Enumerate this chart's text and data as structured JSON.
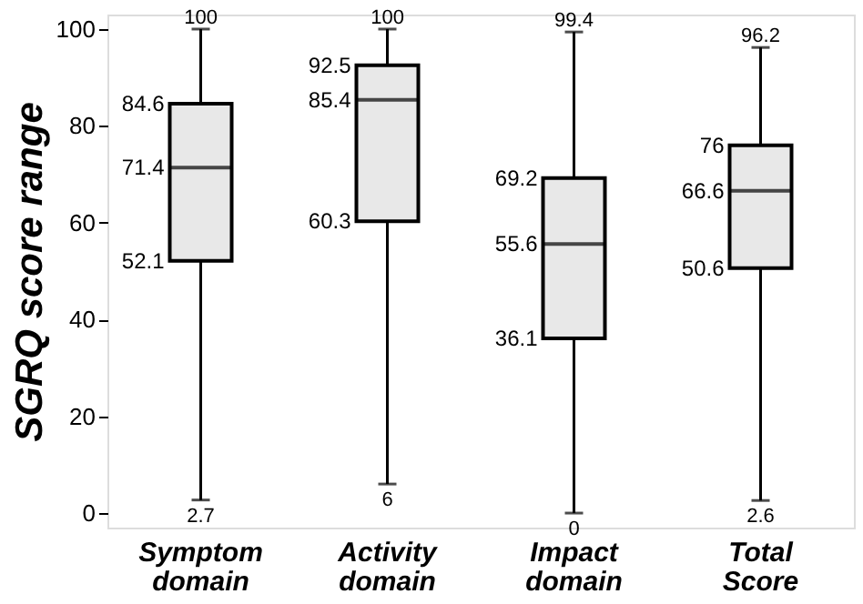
{
  "chart_data": {
    "type": "box",
    "ylabel": "SGRQ score range",
    "categories": [
      "Symptom domain",
      "Activity domain",
      "Impact domain",
      "Total Score"
    ],
    "boxes": [
      {
        "low": 2.7,
        "q1": 52.1,
        "median": 71.4,
        "q3": 84.6,
        "high": 100
      },
      {
        "low": 6,
        "q1": 60.3,
        "median": 85.4,
        "q3": 92.5,
        "high": 100
      },
      {
        "low": 0,
        "q1": 36.1,
        "median": 55.6,
        "q3": 69.2,
        "high": 99.4
      },
      {
        "low": 2.6,
        "q1": 50.6,
        "median": 66.6,
        "q3": 76,
        "high": 96.2
      }
    ],
    "color": "#e8e8e8",
    "ylim": [
      -3,
      103
    ],
    "yticks": [
      0,
      20,
      40,
      60,
      80,
      100
    ],
    "grid": false,
    "annotations": [
      {
        "text": "100",
        "x": "Symptom domain",
        "y": 100
      },
      {
        "text": "84.6",
        "x": "Symptom domain",
        "y": 84.6
      },
      {
        "text": "71.4",
        "x": "Symptom domain",
        "y": 71.4
      },
      {
        "text": "52.1",
        "x": "Symptom domain",
        "y": 52.1
      },
      {
        "text": "2.7",
        "x": "Symptom domain",
        "y": 2.7
      },
      {
        "text": "100",
        "x": "Activity domain",
        "y": 100
      },
      {
        "text": "92.5",
        "x": "Activity domain",
        "y": 92.5
      },
      {
        "text": "85.4",
        "x": "Activity domain",
        "y": 85.4
      },
      {
        "text": "60.3",
        "x": "Activity domain",
        "y": 60.3
      },
      {
        "text": "6",
        "x": "Activity domain",
        "y": 6
      },
      {
        "text": "99.4",
        "x": "Impact domain",
        "y": 99.4
      },
      {
        "text": "69.2",
        "x": "Impact domain",
        "y": 69.2
      },
      {
        "text": "55.6",
        "x": "Impact domain",
        "y": 55.6
      },
      {
        "text": "36.1",
        "x": "Impact domain",
        "y": 36.1
      },
      {
        "text": "0",
        "x": "Impact domain",
        "y": 0
      },
      {
        "text": "96.2",
        "x": "Total Score",
        "y": 96.2
      },
      {
        "text": "76",
        "x": "Total Score",
        "y": 76
      },
      {
        "text": "66.6",
        "x": "Total Score",
        "y": 66.6
      },
      {
        "text": "50.6",
        "x": "Total Score",
        "y": 50.6
      },
      {
        "text": "2.6",
        "x": "Total Score",
        "y": 2.6
      }
    ]
  }
}
